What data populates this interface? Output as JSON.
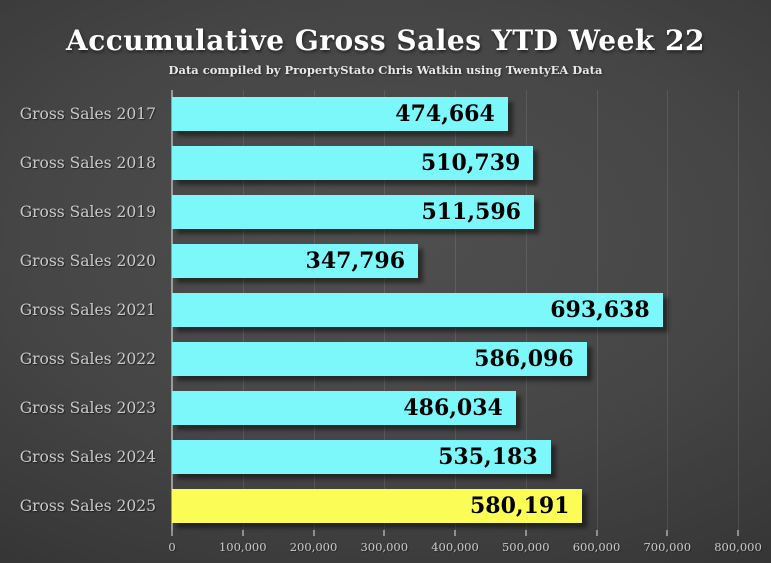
{
  "header": {
    "title": "Accumulative Gross Sales YTD Week 22",
    "subtitle": "Data compiled by PropertyStato Chris Watkin using TwentyEA Data"
  },
  "chart_data": {
    "type": "bar",
    "orientation": "horizontal",
    "title": "Accumulative Gross Sales YTD Week 22",
    "subtitle": "Data compiled by PropertyStato Chris Watkin using TwentyEA Data",
    "categories": [
      "Gross Sales 2017",
      "Gross Sales 2018",
      "Gross Sales 2019",
      "Gross Sales 2020",
      "Gross Sales 2021",
      "Gross Sales 2022",
      "Gross Sales 2023",
      "Gross Sales 2024",
      "Gross Sales 2025"
    ],
    "values": [
      474664,
      510739,
      511596,
      347796,
      693638,
      586096,
      486034,
      535183,
      580191
    ],
    "value_labels": [
      "474,664",
      "510,739",
      "511,596",
      "347,796",
      "693,638",
      "586,096",
      "486,034",
      "535,183",
      "580,191"
    ],
    "bar_colors": [
      "#7CF8FA",
      "#7CF8FA",
      "#7CF8FA",
      "#7CF8FA",
      "#7CF8FA",
      "#7CF8FA",
      "#7CF8FA",
      "#7CF8FA",
      "#FCFC57"
    ],
    "highlight_index": 8,
    "xlim": [
      0,
      800000
    ],
    "xticks": [
      0,
      100000,
      200000,
      300000,
      400000,
      500000,
      600000,
      700000,
      800000
    ],
    "xtick_labels": [
      "0",
      "100,000",
      "200,000",
      "300,000",
      "400,000",
      "500,000",
      "600,000",
      "700,000",
      "800,000"
    ],
    "grid": true,
    "legend": "none",
    "colors": {
      "bar_default": "#7CF8FA",
      "bar_highlight": "#FCFC57",
      "value_text": "#000000",
      "category_text": "#C9C9C9",
      "axis_text": "#C9C9C9",
      "axis_line": "#9B9B9B",
      "background_center": "#4F4F4F",
      "background_edge": "#262626"
    }
  }
}
